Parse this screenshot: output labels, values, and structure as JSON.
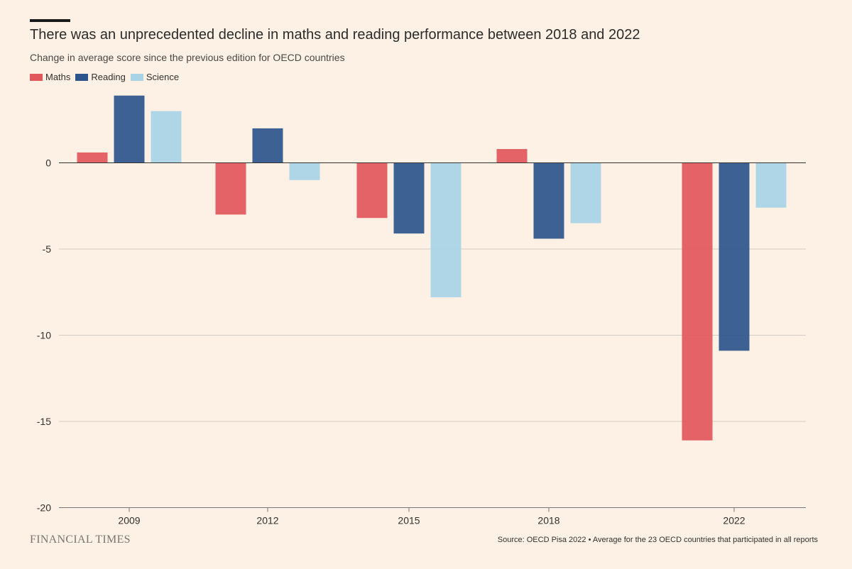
{
  "chart_data": {
    "type": "bar",
    "title": "There was an unprecedented decline in maths and reading performance between 2018 and 2022",
    "subtitle": "Change in average score since the previous edition for OECD countries",
    "categories": [
      "2009",
      "2012",
      "2015",
      "2018",
      "2022"
    ],
    "series": [
      {
        "name": "Maths",
        "color": "#e2575c",
        "values": [
          0.6,
          -3.0,
          -3.2,
          0.8,
          -16.1
        ]
      },
      {
        "name": "Reading",
        "color": "#2d558c",
        "values": [
          3.9,
          2.0,
          -4.1,
          -4.4,
          -10.9
        ]
      },
      {
        "name": "Science",
        "color": "#a8d4e6",
        "values": [
          3.0,
          -1.0,
          -7.8,
          -3.5,
          -2.6
        ]
      }
    ],
    "yticks": [
      0,
      -5,
      -10,
      -15,
      -20
    ],
    "ytick_labels": [
      "0",
      "-5",
      "-10",
      "-15",
      "-20"
    ],
    "ylim": [
      -20,
      4
    ],
    "xlabel": "",
    "ylabel": "",
    "grid": true,
    "legend_position": "top-left"
  },
  "footer": {
    "brand": "FINANCIAL TIMES",
    "source": "Source: OECD Pisa 2022 • Average for the 23 OECD countries that participated in all reports"
  }
}
